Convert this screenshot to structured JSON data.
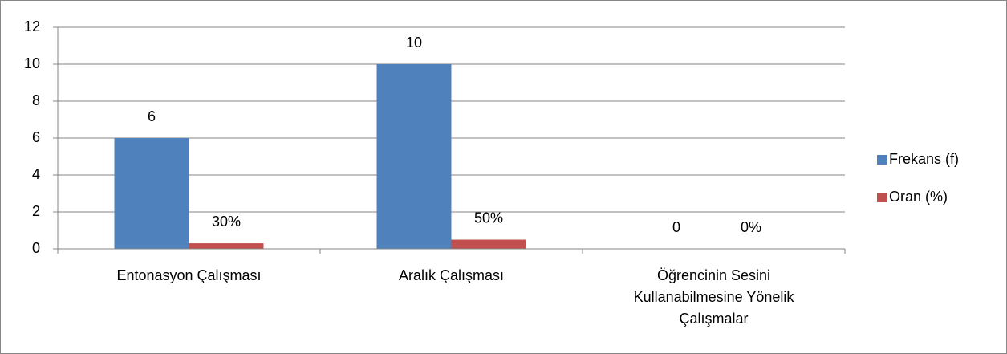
{
  "chart_data": {
    "type": "bar",
    "categories": [
      "Entonasyon Çalışması",
      "Aralık Çalışması",
      "Öğrencinin Sesini Kullanabilmesine Yönelik Çalışmalar"
    ],
    "series": [
      {
        "name": "Frekans (f)",
        "color": "#4f81bd",
        "values": [
          6,
          10,
          0
        ]
      },
      {
        "name": "Oran (%)",
        "color": "#c0504d",
        "values": [
          0.3,
          0.5,
          0
        ],
        "value_labels": [
          "30%",
          "50%",
          "0%"
        ]
      }
    ],
    "ylim": [
      0,
      12
    ],
    "yticks": [
      0,
      2,
      4,
      6,
      8,
      10,
      12
    ],
    "grid": true,
    "legend": "right"
  }
}
